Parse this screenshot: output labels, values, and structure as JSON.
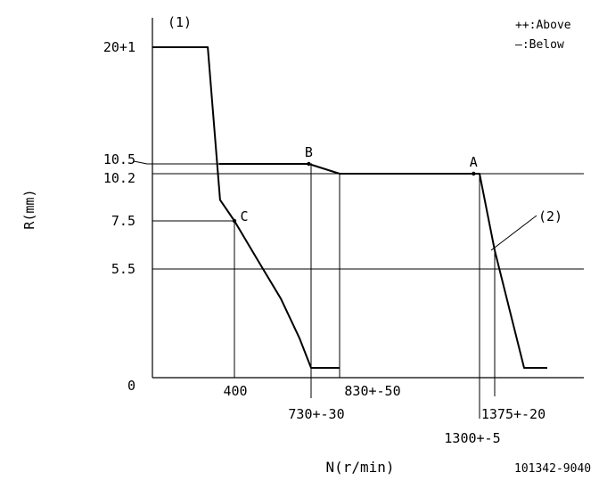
{
  "chart_data": {
    "type": "line",
    "title": "",
    "xlabel": "N(r/min)",
    "ylabel": "R(mm)",
    "figure_id": "101342-9040",
    "legend": {
      "placement": "top-right",
      "entries": [
        "++:Above",
        "—:Below"
      ]
    },
    "y_ticks": [
      {
        "label": "20+1",
        "value": 20
      },
      {
        "label": "10.5",
        "value": 10.5
      },
      {
        "label": "10.2",
        "value": 10.2
      },
      {
        "label": "7.5",
        "value": 7.5
      },
      {
        "label": "5.5",
        "value": 5.5
      },
      {
        "label": "0",
        "value": 0
      }
    ],
    "x_ticks": [
      {
        "label": "400",
        "value": 400
      },
      {
        "label": "730+-30",
        "value": 730
      },
      {
        "label": "830+-50",
        "value": 830
      },
      {
        "label": "1300+-5",
        "value": 1300
      },
      {
        "label": "1375+-20",
        "value": 1375
      }
    ],
    "annotations": [
      {
        "label": "(1)"
      },
      {
        "label": "(2)"
      },
      {
        "label": "A",
        "x": 1280,
        "y": 10.2
      },
      {
        "label": "B",
        "x": 720,
        "y": 10.5
      },
      {
        "label": "C",
        "x": 400,
        "y": 7.5
      }
    ],
    "series": [
      {
        "x": [
          0,
          270,
          330,
          400,
          500,
          600,
          680,
          730,
          830
        ],
        "y": [
          20,
          20,
          8.7,
          7.5,
          6.0,
          4.0,
          2.0,
          0.5,
          0.5
        ]
      },
      {
        "x": [
          325,
          720,
          830,
          1300,
          1375,
          1440,
          1520
        ],
        "y": [
          10.5,
          10.5,
          10.2,
          10.2,
          6.5,
          0.5,
          0.5
        ]
      }
    ]
  }
}
